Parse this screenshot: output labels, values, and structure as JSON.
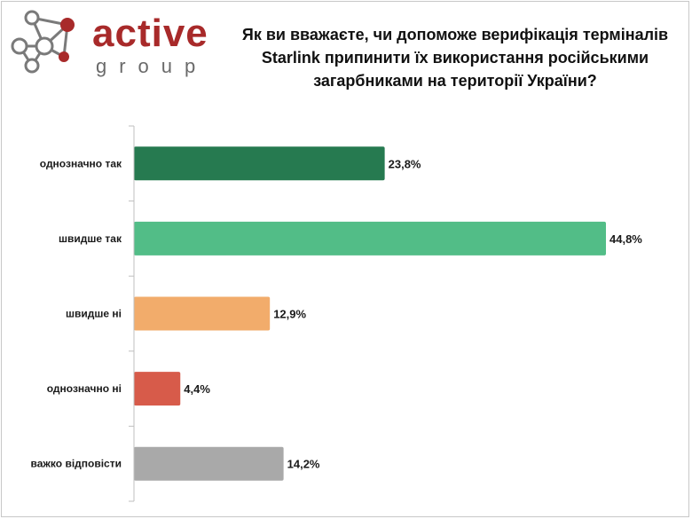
{
  "logo": {
    "word": "active",
    "sub": "group"
  },
  "chart_data": {
    "type": "bar",
    "orientation": "horizontal",
    "title": "Як ви вважаєте, чи допоможе верифікація терміналів Starlink припинити їх використання російськими загарбниками на території України?",
    "categories": [
      "однозначно так",
      "швидше так",
      "швидше ні",
      "однозначно ні",
      "важко відповісти"
    ],
    "values": [
      23.8,
      44.8,
      12.9,
      4.4,
      14.2
    ],
    "value_labels": [
      "23,8%",
      "44,8%",
      "12,9%",
      "4,4%",
      "14,2%"
    ],
    "colors": [
      "#267a50",
      "#52bd87",
      "#f2ac6b",
      "#d75b4a",
      "#a9a9a9"
    ],
    "xlim": [
      0,
      50
    ],
    "xlabel": "",
    "ylabel": ""
  }
}
